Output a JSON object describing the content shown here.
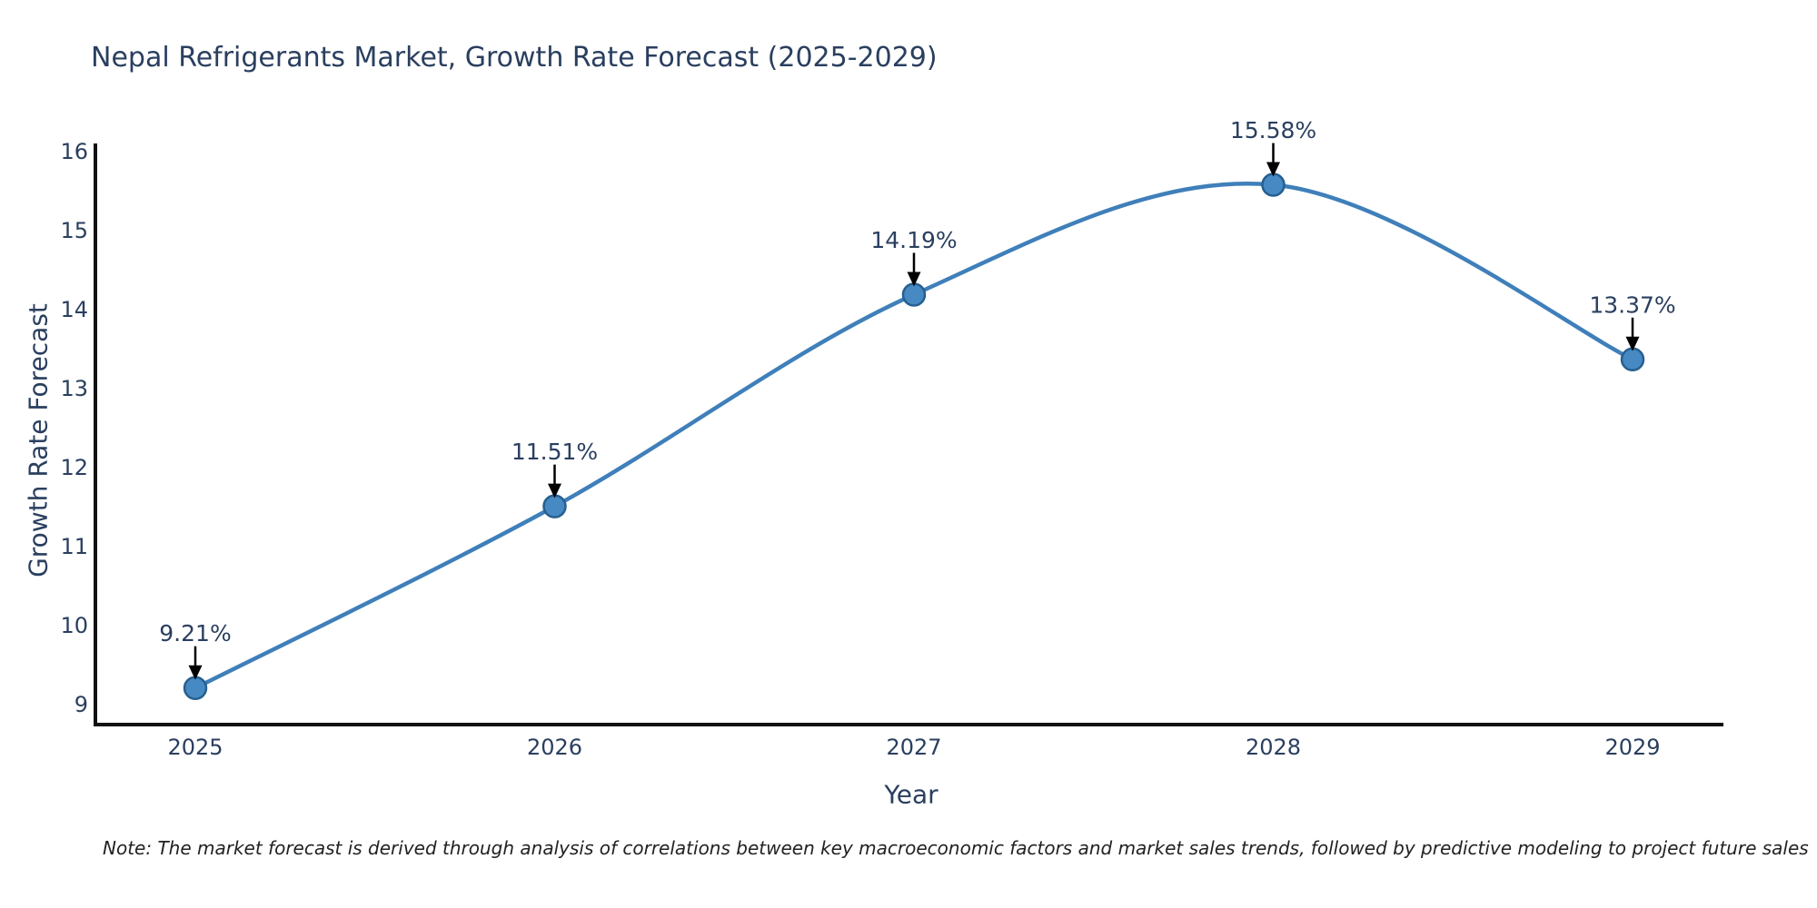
{
  "chart_data": {
    "type": "line",
    "title": "Nepal Refrigerants Market, Growth Rate Forecast (2025-2029)",
    "xlabel": "Year",
    "ylabel": "Growth Rate Forecast",
    "x": [
      2025,
      2026,
      2027,
      2028,
      2029
    ],
    "values": [
      9.21,
      11.51,
      14.19,
      15.58,
      13.37
    ],
    "point_labels": [
      "9.21%",
      "11.51%",
      "14.19%",
      "15.58%",
      "13.37%"
    ],
    "yticks": [
      9,
      10,
      11,
      12,
      13,
      14,
      15,
      16
    ],
    "ylim": [
      8.75,
      16.1
    ],
    "grid": false,
    "legend": "none",
    "line_shape": "spline",
    "marker": "circle",
    "annotation_style": "arrow-down",
    "note": "Note: The market forecast is derived through analysis of correlations between key macroeconomic factors and market sales trends, followed by predictive modeling to project future sales",
    "colors": {
      "line": "#3f7fba",
      "marker_fill": "#4789c2",
      "marker_stroke": "#265f90",
      "text": "#2a3f5f",
      "axis": "#111111",
      "arrow": "#000000",
      "note_text": "#222222"
    }
  }
}
